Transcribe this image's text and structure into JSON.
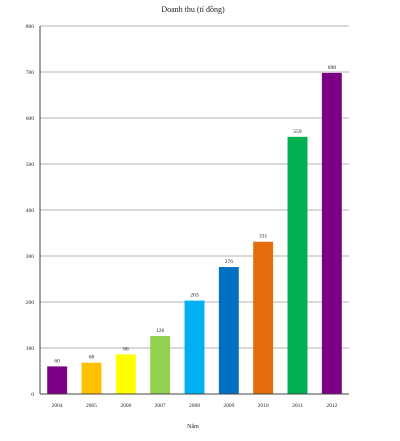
{
  "chart_data": {
    "type": "bar",
    "title": "Doanh thu (tỉ đồng)",
    "xlabel": "Năm",
    "ylabel": "",
    "categories": [
      "2004",
      "2005",
      "2006",
      "2007",
      "2008",
      "2009",
      "2010",
      "2011",
      "2012"
    ],
    "values": [
      60,
      68,
      86,
      126,
      203,
      276,
      331,
      559,
      698
    ],
    "data_labels": [
      "60",
      "68",
      "86",
      "126",
      "203",
      "276",
      "331",
      "559",
      "698"
    ],
    "ylim": [
      0,
      800
    ],
    "yticks": [
      0,
      100,
      200,
      300,
      400,
      500,
      600,
      700,
      800
    ],
    "ytick_labels": [
      "0",
      "100",
      "200",
      "300",
      "400",
      "500",
      "600",
      "700",
      "800"
    ],
    "grid": true,
    "legend": "none",
    "bar_colors": [
      "#7b0085",
      "#ffc000",
      "#ffff00",
      "#92d050",
      "#00b0f0",
      "#0070c0",
      "#e46c0a",
      "#00b050",
      "#7b0085"
    ]
  }
}
